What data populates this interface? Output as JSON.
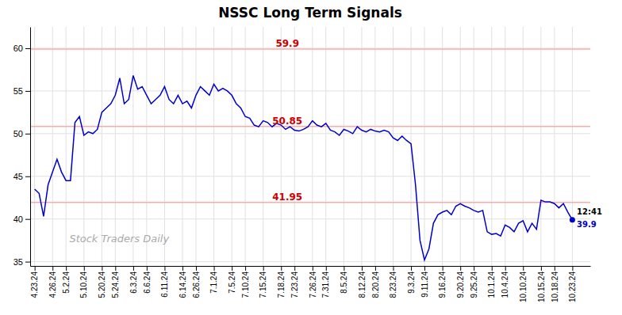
{
  "chart_data": {
    "type": "line",
    "title": "NSSC Long Term Signals",
    "categories": [
      "4.23.24",
      null,
      null,
      null,
      "4.26.24",
      null,
      null,
      "5.2.24",
      null,
      null,
      null,
      "5.10.24",
      null,
      null,
      null,
      "5.20.24",
      null,
      null,
      "5.24.24",
      null,
      null,
      null,
      "6.3.24",
      null,
      null,
      "6.6.24",
      null,
      null,
      null,
      "6.11.24",
      null,
      null,
      null,
      "6.14.24",
      null,
      null,
      "6.26.24",
      null,
      null,
      null,
      "7.1.24",
      null,
      null,
      null,
      "7.5.24",
      null,
      null,
      "7.10.24",
      null,
      null,
      null,
      "7.15.24",
      null,
      null,
      null,
      "7.18.24",
      null,
      null,
      "7.23.24",
      null,
      null,
      null,
      "7.26.24",
      null,
      null,
      "7.31.24",
      null,
      null,
      null,
      "8.5.24",
      null,
      null,
      null,
      "8.12.24",
      null,
      null,
      "8.20.24",
      null,
      null,
      null,
      "8.23.24",
      null,
      null,
      null,
      "9.3.24",
      null,
      null,
      "9.11.24",
      null,
      null,
      null,
      "9.16.24",
      null,
      null,
      null,
      "9.20.24",
      null,
      null,
      "9.25.24",
      null,
      null,
      null,
      "10.1.24",
      null,
      null,
      "10.4.24",
      null,
      null,
      null,
      "10.10.24",
      null,
      null,
      null,
      "10.15.24",
      null,
      null,
      "10.18.24",
      null,
      null,
      null,
      "10.23.24"
    ],
    "values": [
      43.5,
      43.0,
      40.3,
      44.0,
      45.5,
      47.0,
      45.5,
      44.5,
      44.5,
      51.3,
      52.0,
      49.8,
      50.2,
      50.0,
      50.5,
      52.5,
      53.0,
      53.5,
      54.5,
      56.5,
      53.5,
      54.0,
      56.8,
      55.2,
      55.5,
      54.5,
      53.5,
      54.0,
      54.5,
      55.5,
      54.0,
      53.5,
      54.5,
      53.5,
      53.8,
      53.0,
      54.5,
      55.5,
      55.0,
      54.5,
      55.8,
      55.0,
      55.3,
      55.0,
      54.5,
      53.5,
      53.0,
      52.0,
      51.8,
      51.0,
      50.8,
      51.5,
      51.3,
      50.8,
      51.2,
      51.0,
      50.5,
      50.8,
      50.4,
      50.3,
      50.5,
      50.8,
      51.5,
      51.0,
      50.8,
      51.2,
      50.4,
      50.2,
      49.8,
      50.5,
      50.3,
      50.0,
      50.8,
      50.4,
      50.2,
      50.5,
      50.3,
      50.2,
      50.4,
      50.2,
      49.5,
      49.2,
      49.7,
      49.2,
      48.8,
      44.0,
      37.5,
      35.2,
      36.5,
      39.5,
      40.5,
      40.8,
      41.0,
      40.5,
      41.5,
      41.8,
      41.5,
      41.3,
      41.0,
      40.8,
      41.0,
      38.5,
      38.2,
      38.3,
      38.0,
      39.3,
      39.0,
      38.5,
      39.5,
      39.8,
      38.5,
      39.5,
      38.8,
      42.2,
      42.0,
      42.0,
      41.8,
      41.3,
      41.8,
      40.8,
      39.9
    ],
    "color": "#0000cc",
    "ylim": [
      34.5,
      62.5
    ],
    "yticks": [
      35,
      40,
      45,
      50,
      55,
      60
    ],
    "grid": true,
    "annotations": [
      {
        "type": "hline",
        "y": 59.9,
        "label": "59.9",
        "color": "#ffaaaa",
        "label_color": "#cc0000"
      },
      {
        "type": "hline",
        "y": 50.85,
        "label": "50.85",
        "color": "#ffaaaa",
        "label_color": "#cc0000"
      },
      {
        "type": "hline",
        "y": 41.95,
        "label": "41.95",
        "color": "#ffaaaa",
        "label_color": "#cc0000"
      },
      {
        "type": "last_point",
        "label": "12:41",
        "value": 39.9
      },
      {
        "type": "watermark",
        "text": "Stock Traders Daily"
      }
    ]
  }
}
